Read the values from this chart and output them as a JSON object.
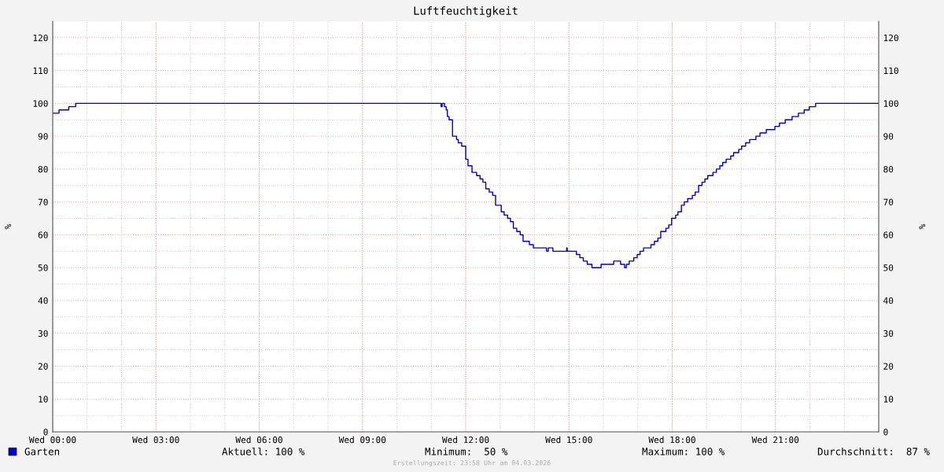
{
  "chart_data": {
    "type": "step",
    "title": "Luftfeuchtigkeit",
    "ylabel": "%",
    "y2label": "%",
    "x": [
      "2026-03-04T00:00",
      "2026-03-04T00:11",
      "2026-03-04T00:28",
      "2026-03-04T00:40",
      "2026-03-04T11:15",
      "2026-03-04T11:17",
      "2026-03-04T11:19",
      "2026-03-04T11:23",
      "2026-03-04T11:26",
      "2026-03-04T11:28",
      "2026-03-04T11:31",
      "2026-03-04T11:37",
      "2026-03-04T11:44",
      "2026-03-04T11:47",
      "2026-03-04T11:53",
      "2026-03-04T12:00",
      "2026-03-04T12:04",
      "2026-03-04T12:11",
      "2026-03-04T12:19",
      "2026-03-04T12:25",
      "2026-03-04T12:30",
      "2026-03-04T12:35",
      "2026-03-04T12:41",
      "2026-03-04T12:47",
      "2026-03-04T12:52",
      "2026-03-04T13:02",
      "2026-03-04T13:07",
      "2026-03-04T13:13",
      "2026-03-04T13:18",
      "2026-03-04T13:23",
      "2026-03-04T13:29",
      "2026-03-04T13:35",
      "2026-03-04T13:40",
      "2026-03-04T13:51",
      "2026-03-04T13:58",
      "2026-03-04T14:19",
      "2026-03-04T14:21",
      "2026-03-04T14:24",
      "2026-03-04T14:32",
      "2026-03-04T14:53",
      "2026-03-04T14:56",
      "2026-03-04T14:57",
      "2026-03-04T15:11",
      "2026-03-04T15:13",
      "2026-03-04T15:19",
      "2026-03-04T15:25",
      "2026-03-04T15:32",
      "2026-03-04T15:40",
      "2026-03-04T15:56",
      "2026-03-04T16:18",
      "2026-03-04T16:30",
      "2026-03-04T16:37",
      "2026-03-04T16:40",
      "2026-03-04T16:45",
      "2026-03-04T16:53",
      "2026-03-04T16:59",
      "2026-03-04T17:04",
      "2026-03-04T17:10",
      "2026-03-04T17:20",
      "2026-03-04T17:23",
      "2026-03-04T17:29",
      "2026-03-04T17:35",
      "2026-03-04T17:40",
      "2026-03-04T17:49",
      "2026-03-04T17:54",
      "2026-03-04T17:59",
      "2026-03-04T18:06",
      "2026-03-04T18:10",
      "2026-03-04T18:16",
      "2026-03-04T18:21",
      "2026-03-04T18:27",
      "2026-03-04T18:35",
      "2026-03-04T18:40",
      "2026-03-04T18:46",
      "2026-03-04T18:52",
      "2026-03-04T18:57",
      "2026-03-04T19:02",
      "2026-03-04T19:11",
      "2026-03-04T19:17",
      "2026-03-04T19:23",
      "2026-03-04T19:28",
      "2026-03-04T19:34",
      "2026-03-04T19:42",
      "2026-03-04T19:47",
      "2026-03-04T19:56",
      "2026-03-04T20:01",
      "2026-03-04T20:08",
      "2026-03-04T20:15",
      "2026-03-04T20:26",
      "2026-03-04T20:33",
      "2026-03-04T20:44",
      "2026-03-04T20:59",
      "2026-03-04T21:07",
      "2026-03-04T21:17",
      "2026-03-04T21:29",
      "2026-03-04T21:40",
      "2026-03-04T21:50",
      "2026-03-04T21:59",
      "2026-03-04T22:10",
      "2026-03-05T00:00"
    ],
    "series": [
      {
        "name": "Garten",
        "color": "#0000cc",
        "values": [
          97,
          98,
          99,
          100,
          100,
          99,
          100,
          99,
          98,
          96,
          95,
          90,
          89,
          88,
          87,
          83,
          81,
          79,
          78,
          77,
          76,
          74,
          73,
          72,
          69,
          67,
          66,
          65,
          64,
          62,
          61,
          60,
          58,
          57,
          56,
          56,
          55,
          56,
          55,
          55,
          56,
          55,
          55,
          54,
          53,
          52,
          51,
          50,
          51,
          52,
          51,
          50,
          51,
          52,
          53,
          54,
          55,
          56,
          56,
          57,
          58,
          59,
          61,
          62,
          63,
          65,
          66,
          67,
          69,
          70,
          71,
          72,
          73,
          75,
          76,
          77,
          78,
          79,
          80,
          81,
          82,
          83,
          84,
          85,
          86,
          87,
          88,
          89,
          90,
          91,
          92,
          93,
          94,
          95,
          96,
          97,
          98,
          99,
          100,
          100
        ]
      }
    ],
    "xlim": [
      "2026-03-04T00:00",
      "2026-03-05T00:00"
    ],
    "xticks": [
      {
        "value": "2026-03-04T00:00",
        "label": "Wed 00:00"
      },
      {
        "value": "2026-03-04T03:00",
        "label": "Wed 03:00"
      },
      {
        "value": "2026-03-04T06:00",
        "label": "Wed 06:00"
      },
      {
        "value": "2026-03-04T09:00",
        "label": "Wed 09:00"
      },
      {
        "value": "2026-03-04T12:00",
        "label": "Wed 12:00"
      },
      {
        "value": "2026-03-04T15:00",
        "label": "Wed 15:00"
      },
      {
        "value": "2026-03-04T18:00",
        "label": "Wed 18:00"
      },
      {
        "value": "2026-03-04T21:00",
        "label": "Wed 21:00"
      }
    ],
    "ylim": [
      0,
      125
    ],
    "yticks": [
      0,
      10,
      20,
      30,
      40,
      50,
      60,
      70,
      80,
      90,
      100,
      110,
      120
    ],
    "y2lim": [
      0,
      125
    ],
    "y2ticks": [
      0,
      10,
      20,
      30,
      40,
      50,
      60,
      70,
      80,
      90,
      100,
      110,
      120
    ],
    "grid": true,
    "legend": "bottom left",
    "annotations": [
      "Aktuell: 100 %",
      "Minimum:  50 %",
      "Maximum: 100 %",
      "Durchschnitt:  87 %",
      "Erstellungszeit: 23:58 Uhr am 04.03.2026"
    ]
  }
}
